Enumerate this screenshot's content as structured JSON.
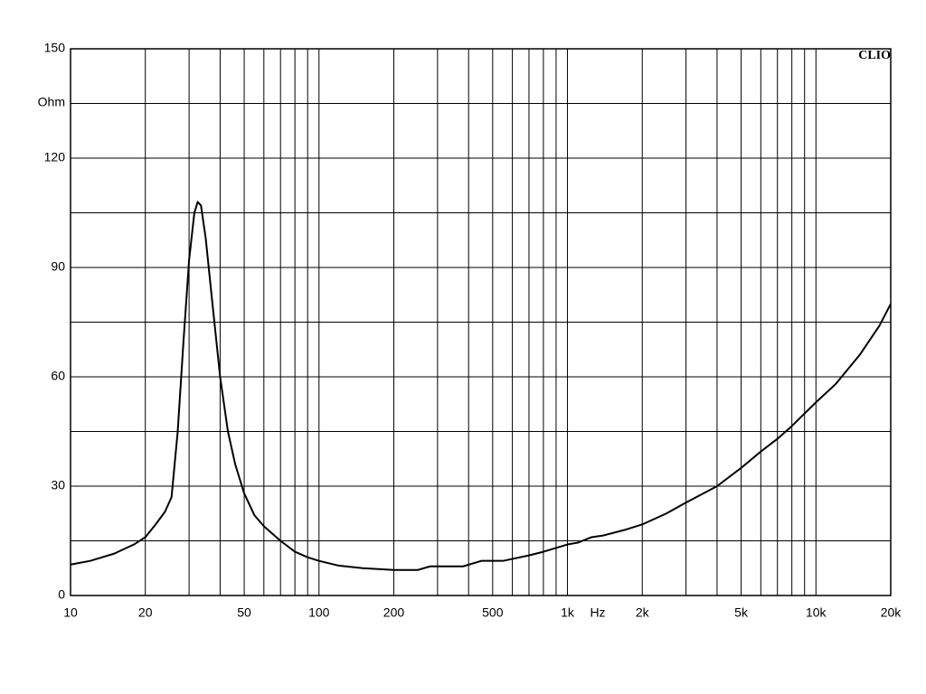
{
  "chart_data": {
    "type": "line",
    "brand": "CLIO",
    "y_label": "Ohm",
    "x_label": "Hz",
    "x": [
      10,
      12,
      15,
      18,
      20,
      22,
      24,
      25.5,
      27,
      28.5,
      30,
      31.5,
      32.5,
      33.5,
      35,
      37,
      40,
      43,
      46,
      50,
      55,
      60,
      70,
      80,
      90,
      100,
      120,
      150,
      200,
      250,
      280,
      380,
      450,
      550,
      700,
      800,
      1000,
      1100,
      1250,
      1400,
      1700,
      2000,
      2500,
      3000,
      4000,
      5000,
      6000,
      7000,
      8000,
      10000,
      12000,
      15000,
      18000,
      20000
    ],
    "series": [
      {
        "color": "#000000",
        "values": [
          8.5,
          9.5,
          11.5,
          14,
          16,
          19.5,
          23,
          27,
          45,
          70,
          92,
          105,
          108,
          107,
          98,
          82,
          60,
          45,
          36,
          28,
          22,
          19,
          15,
          12,
          10.5,
          9.5,
          8.2,
          7.5,
          7,
          7,
          8,
          8,
          9.5,
          9.5,
          11,
          12,
          14,
          14.5,
          16,
          16.5,
          18,
          19.5,
          22.5,
          25.5,
          30,
          35,
          39.5,
          43,
          46.5,
          53,
          58,
          66,
          74,
          80
        ]
      }
    ],
    "xlog": true,
    "xlim": [
      10,
      20000
    ],
    "xticks": [
      10,
      20,
      50,
      100,
      200,
      500,
      {
        "value": 1000,
        "label": "1k"
      },
      {
        "value": 2000,
        "label": "2k"
      },
      {
        "value": 5000,
        "label": "5k"
      },
      {
        "value": 10000,
        "label": "10k"
      },
      {
        "value": 20000,
        "label": "20k"
      }
    ],
    "xminor": [
      30,
      40,
      60,
      70,
      80,
      90,
      300,
      400,
      600,
      700,
      800,
      900,
      3000,
      4000,
      6000,
      7000,
      8000,
      9000
    ],
    "ylim": [
      0,
      150
    ],
    "yticks": [
      0,
      30,
      60,
      90,
      120,
      150
    ],
    "yminor": [
      15,
      45,
      75,
      105,
      135
    ],
    "grid": true
  }
}
